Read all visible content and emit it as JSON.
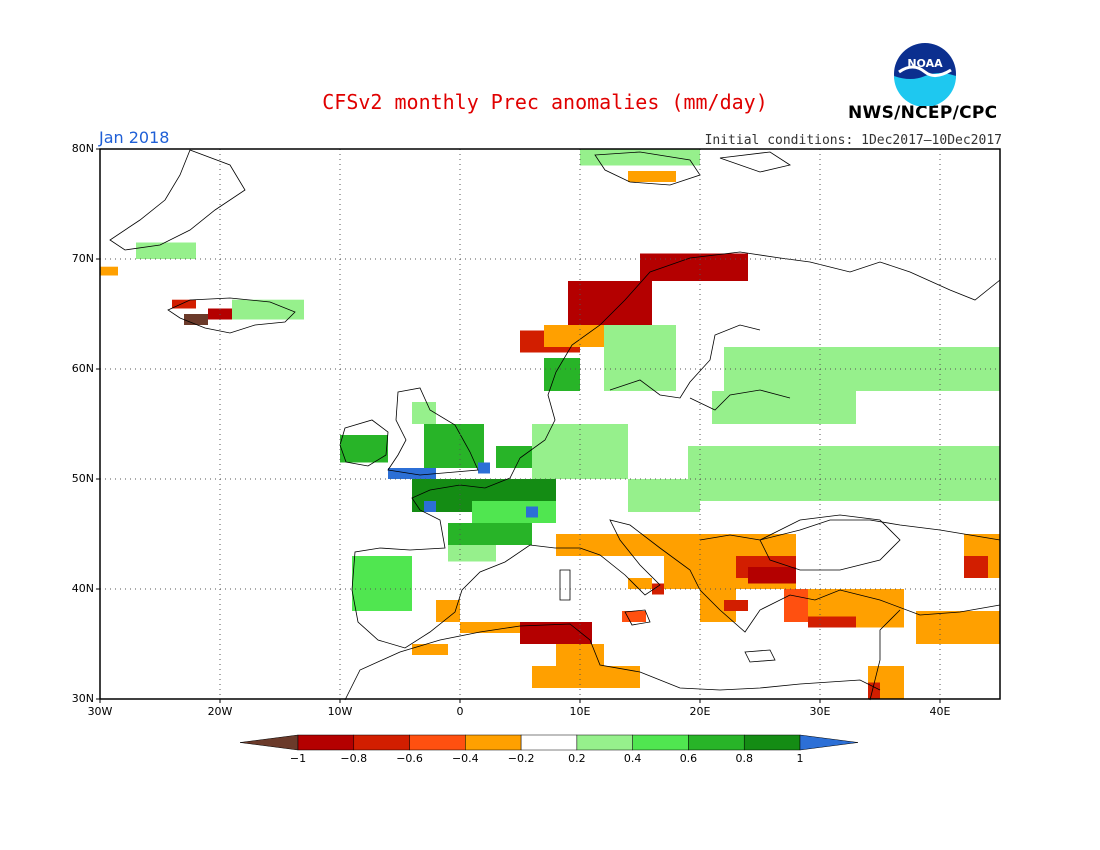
{
  "header": {
    "title": "CFSv2 monthly Prec anomalies (mm/day)",
    "month": "Jan 2018",
    "initial_conditions": "Initial conditions: 1Dec2017—10Dec2017",
    "agency": "NWS/NCEP/CPC",
    "logo_text": "NOAA"
  },
  "map": {
    "lon_range": [
      -30,
      45
    ],
    "lat_range": [
      30,
      80
    ],
    "lat_ticks": [
      {
        "v": 80,
        "label": "80N"
      },
      {
        "v": 70,
        "label": "70N"
      },
      {
        "v": 60,
        "label": "60N"
      },
      {
        "v": 50,
        "label": "50N"
      },
      {
        "v": 40,
        "label": "40N"
      },
      {
        "v": 30,
        "label": "30N"
      }
    ],
    "lon_ticks": [
      {
        "v": -30,
        "label": "30W"
      },
      {
        "v": -20,
        "label": "20W"
      },
      {
        "v": -10,
        "label": "10W"
      },
      {
        "v": 0,
        "label": "0"
      },
      {
        "v": 10,
        "label": "10E"
      },
      {
        "v": 20,
        "label": "20E"
      },
      {
        "v": 30,
        "label": "30E"
      },
      {
        "v": 40,
        "label": "40E"
      }
    ],
    "grid": "dotted"
  },
  "colorbar": {
    "labels": [
      "−1",
      "−0.8",
      "−0.6",
      "−0.4",
      "−0.2",
      "0.2",
      "0.4",
      "0.6",
      "0.8",
      "1"
    ],
    "colors": [
      "#6b3a2a",
      "#b40000",
      "#d21e00",
      "#ff5010",
      "#ffa000",
      "#ffffff",
      "#96f08c",
      "#50e650",
      "#28b428",
      "#148c14",
      "#2c6fd6"
    ]
  },
  "colors": {
    "very_dry": "#6b3a2a",
    "dry_red": "#b40000",
    "red": "#d21e00",
    "orange_red": "#ff5010",
    "orange": "#ffa000",
    "light_green": "#96f08c",
    "green": "#50e650",
    "mid_green": "#28b428",
    "dark_green": "#148c14",
    "blue": "#2c6fd6"
  },
  "anomaly_regions": [
    {
      "name": "Iceland SW",
      "category": "very_dry",
      "lon": [
        -23,
        -21
      ],
      "lat": [
        64,
        65
      ]
    },
    {
      "name": "Iceland S",
      "category": "dry_red",
      "lon": [
        -21,
        -19
      ],
      "lat": [
        64.5,
        65.5
      ]
    },
    {
      "name": "Iceland NW",
      "category": "red",
      "lon": [
        -24,
        -22
      ],
      "lat": [
        65.5,
        66.3
      ]
    },
    {
      "name": "Iceland N",
      "category": "light_green",
      "lon": [
        -19,
        -13
      ],
      "lat": [
        64.5,
        66.3
      ]
    },
    {
      "name": "Greenland E",
      "category": "light_green",
      "lon": [
        -27,
        -22
      ],
      "lat": [
        70,
        71.5
      ]
    },
    {
      "name": "Greenland SE",
      "category": "orange",
      "lon": [
        -30,
        -28.5
      ],
      "lat": [
        68.5,
        69.3
      ]
    },
    {
      "name": "Svalbard",
      "category": "orange",
      "lon": [
        14,
        18
      ],
      "lat": [
        77,
        78
      ]
    },
    {
      "name": "Svalbard N",
      "category": "light_green",
      "lon": [
        10,
        20
      ],
      "lat": [
        78.5,
        80
      ]
    },
    {
      "name": "Norway coast N",
      "category": "dry_red",
      "lon": [
        15,
        24
      ],
      "lat": [
        68,
        70.5
      ]
    },
    {
      "name": "Norway coast C",
      "category": "dry_red",
      "lon": [
        9,
        16
      ],
      "lat": [
        63,
        68
      ]
    },
    {
      "name": "Norway coast S",
      "category": "red",
      "lon": [
        5,
        10
      ],
      "lat": [
        61.5,
        63.5
      ]
    },
    {
      "name": "Norway orange",
      "category": "orange",
      "lon": [
        7,
        12
      ],
      "lat": [
        62,
        64
      ]
    },
    {
      "name": "Scandinavia green",
      "category": "light_green",
      "lon": [
        12,
        18
      ],
      "lat": [
        58,
        64
      ]
    },
    {
      "name": "Norway SW green",
      "category": "mid_green",
      "lon": [
        7,
        10
      ],
      "lat": [
        58,
        61
      ]
    },
    {
      "name": "Finland/Russia",
      "category": "light_green",
      "lon": [
        22,
        45
      ],
      "lat": [
        58,
        62
      ]
    },
    {
      "name": "Baltic",
      "category": "light_green",
      "lon": [
        21,
        33
      ],
      "lat": [
        55,
        58
      ]
    },
    {
      "name": "Ireland",
      "category": "mid_green",
      "lon": [
        -10,
        -6
      ],
      "lat": [
        51.5,
        54
      ]
    },
    {
      "name": "Britain",
      "category": "mid_green",
      "lon": [
        -3,
        2
      ],
      "lat": [
        51,
        55
      ]
    },
    {
      "name": "Britain N",
      "category": "light_green",
      "lon": [
        -4,
        -2
      ],
      "lat": [
        55,
        57
      ]
    },
    {
      "name": "Cornwall blue",
      "category": "blue",
      "lon": [
        -6,
        -2
      ],
      "lat": [
        50,
        51
      ]
    },
    {
      "name": "Channel blue",
      "category": "blue",
      "lon": [
        1.5,
        2.5
      ],
      "lat": [
        50.5,
        51.5
      ]
    },
    {
      "name": "Low Countries",
      "category": "mid_green",
      "lon": [
        3,
        8
      ],
      "lat": [
        51,
        53
      ]
    },
    {
      "name": "Germany",
      "category": "light_green",
      "lon": [
        6,
        14
      ],
      "lat": [
        50,
        55
      ]
    },
    {
      "name": "France N",
      "category": "dark_green",
      "lon": [
        -4,
        8
      ],
      "lat": [
        47,
        50
      ]
    },
    {
      "name": "France C",
      "category": "green",
      "lon": [
        1,
        8
      ],
      "lat": [
        46,
        48
      ]
    },
    {
      "name": "France S",
      "category": "mid_green",
      "lon": [
        -1,
        6
      ],
      "lat": [
        44,
        46
      ]
    },
    {
      "name": "Brittany blue",
      "category": "blue",
      "lon": [
        -3,
        -2
      ],
      "lat": [
        47,
        48
      ]
    },
    {
      "name": "Alps blue",
      "category": "blue",
      "lon": [
        5.5,
        6.5
      ],
      "lat": [
        46.5,
        47.5
      ]
    },
    {
      "name": "Iberia NW blue",
      "category": "blue",
      "lon": [
        -9,
        -6.5
      ],
      "lat": [
        40,
        43
      ]
    },
    {
      "name": "Iberia NW",
      "category": "green",
      "lon": [
        -9,
        -4
      ],
      "lat": [
        38,
        43
      ]
    },
    {
      "name": "Pyrenees",
      "category": "light_green",
      "lon": [
        -1,
        3
      ],
      "lat": [
        42.5,
        44
      ]
    },
    {
      "name": "Central Europe",
      "category": "light_green",
      "lon": [
        14,
        20
      ],
      "lat": [
        47,
        50
      ]
    },
    {
      "name": "Ukraine/Russia",
      "category": "light_green",
      "lon": [
        19,
        45
      ],
      "lat": [
        48,
        53
      ]
    },
    {
      "name": "Balkans",
      "category": "orange",
      "lon": [
        17,
        28
      ],
      "lat": [
        40,
        45
      ]
    },
    {
      "name": "Bulgaria red",
      "category": "red",
      "lon": [
        23,
        28
      ],
      "lat": [
        41,
        43
      ]
    },
    {
      "name": "Thrace dark",
      "category": "dry_red",
      "lon": [
        24,
        28
      ],
      "lat": [
        40.5,
        42
      ]
    },
    {
      "name": "Greece",
      "category": "orange",
      "lon": [
        20,
        23
      ],
      "lat": [
        37,
        40
      ]
    },
    {
      "name": "Aegean red",
      "category": "red",
      "lon": [
        22,
        24
      ],
      "lat": [
        38,
        39
      ]
    },
    {
      "name": "Turkey W",
      "category": "orange_red",
      "lon": [
        27,
        29
      ],
      "lat": [
        37,
        40
      ]
    },
    {
      "name": "Turkey S",
      "category": "orange",
      "lon": [
        29,
        37
      ],
      "lat": [
        36.5,
        40
      ]
    },
    {
      "name": "Turkey SW red",
      "category": "red",
      "lon": [
        29,
        33
      ],
      "lat": [
        36.5,
        37.5
      ]
    },
    {
      "name": "Caucasus",
      "category": "orange",
      "lon": [
        42,
        45
      ],
      "lat": [
        41,
        45
      ]
    },
    {
      "name": "Caucasus red",
      "category": "red",
      "lon": [
        42,
        44
      ],
      "lat": [
        41,
        43
      ]
    },
    {
      "name": "Middle East",
      "category": "orange",
      "lon": [
        38,
        45
      ],
      "lat": [
        35,
        38
      ]
    },
    {
      "name": "Italy S",
      "category": "orange",
      "lon": [
        14,
        16
      ],
      "lat": [
        40,
        41
      ]
    },
    {
      "name": "Italy SE red",
      "category": "red",
      "lon": [
        16,
        17
      ],
      "lat": [
        39.5,
        40.5
      ]
    },
    {
      "name": "Sicily",
      "category": "orange_red",
      "lon": [
        13.5,
        15.5
      ],
      "lat": [
        37,
        38
      ]
    },
    {
      "name": "Italy N",
      "category": "orange",
      "lon": [
        8,
        18
      ],
      "lat": [
        43,
        45
      ]
    },
    {
      "name": "Spain SE",
      "category": "orange",
      "lon": [
        -2,
        0
      ],
      "lat": [
        37,
        39
      ]
    },
    {
      "name": "N Africa coast",
      "category": "orange",
      "lon": [
        0,
        6
      ],
      "lat": [
        36,
        37
      ]
    },
    {
      "name": "Tunisia/Algeria red",
      "category": "dry_red",
      "lon": [
        5,
        11
      ],
      "lat": [
        35,
        37
      ]
    },
    {
      "name": "Tunisia S",
      "category": "orange",
      "lon": [
        8,
        12
      ],
      "lat": [
        32,
        35
      ]
    },
    {
      "name": "Libya",
      "category": "orange",
      "lon": [
        6,
        15
      ],
      "lat": [
        31,
        33
      ]
    },
    {
      "name": "Morocco",
      "category": "orange",
      "lon": [
        -4,
        -1
      ],
      "lat": [
        34,
        35
      ]
    },
    {
      "name": "Levant",
      "category": "orange",
      "lon": [
        34,
        37
      ],
      "lat": [
        30,
        33
      ]
    },
    {
      "name": "Levant red",
      "category": "red",
      "lon": [
        34,
        35
      ],
      "lat": [
        30,
        31.5
      ]
    }
  ]
}
